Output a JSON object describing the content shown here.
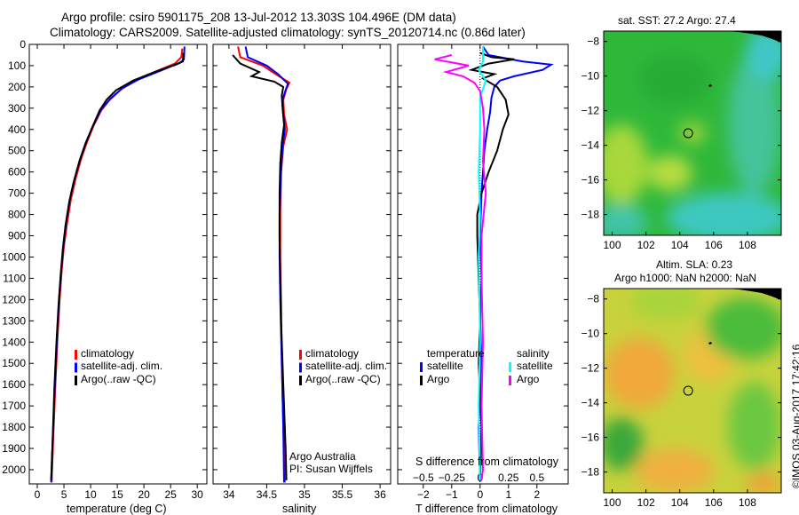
{
  "title": {
    "line1": "Argo profile: csiro 5901175_208 13-Jul-2012 13.303S 104.496E (DM data)",
    "line2": "Climatology: CARS2009. Satellite-adjusted climatology: synTS_20120714.nc (0.86d later)"
  },
  "credit": "©IMOS 03-Aug-2017 17:42:16",
  "colors": {
    "climatology": "#ff0000",
    "satellite": "#0000ff",
    "argo": "#000000",
    "s_satellite": "#00ffff",
    "s_argo": "#ff00ff"
  },
  "chart_data": [
    {
      "type": "line",
      "name": "temperature",
      "xlabel": "temperature (deg C)",
      "ylabel": "",
      "xlim": [
        -1.5,
        31.8
      ],
      "ylim": [
        2067,
        0
      ],
      "xticks": [
        0,
        5,
        10,
        15,
        20,
        25,
        30
      ],
      "yticks": [
        0,
        100,
        200,
        300,
        400,
        500,
        600,
        700,
        800,
        900,
        1000,
        1100,
        1200,
        1300,
        1400,
        1500,
        1600,
        1700,
        1800,
        1900,
        2000
      ],
      "legend": [
        "climatology",
        "satellite-adj. clim.",
        "Argo(..raw -QC)"
      ],
      "series": [
        {
          "name": "climatology",
          "color": "#ff0000",
          "points": [
            [
              27.2,
              20
            ],
            [
              27.0,
              60
            ],
            [
              25.8,
              90
            ],
            [
              22,
              130
            ],
            [
              18.5,
              170
            ],
            [
              15.8,
              210
            ],
            [
              13.6,
              260
            ],
            [
              12.0,
              310
            ],
            [
              10.6,
              380
            ],
            [
              9.3,
              460
            ],
            [
              8.2,
              540
            ],
            [
              7.2,
              630
            ],
            [
              6.3,
              730
            ],
            [
              5.6,
              840
            ],
            [
              5.0,
              950
            ],
            [
              4.6,
              1060
            ],
            [
              4.2,
              1200
            ],
            [
              3.8,
              1380
            ],
            [
              3.4,
              1600
            ],
            [
              3.0,
              1850
            ],
            [
              2.7,
              2060
            ]
          ]
        },
        {
          "name": "satellite-adj. clim.",
          "color": "#0000ff",
          "points": [
            [
              27.6,
              10
            ],
            [
              27.5,
              70
            ],
            [
              26.8,
              85
            ],
            [
              23,
              125
            ],
            [
              19,
              165
            ],
            [
              16,
              205
            ],
            [
              13.7,
              255
            ],
            [
              12.0,
              305
            ],
            [
              10.5,
              380
            ],
            [
              9.1,
              460
            ],
            [
              8.0,
              540
            ],
            [
              7.0,
              630
            ],
            [
              6.1,
              730
            ],
            [
              5.4,
              840
            ],
            [
              4.9,
              950
            ],
            [
              4.5,
              1060
            ],
            [
              4.1,
              1200
            ],
            [
              3.7,
              1380
            ],
            [
              3.3,
              1600
            ],
            [
              2.9,
              1850
            ],
            [
              2.6,
              2060
            ]
          ]
        },
        {
          "name": "Argo(..raw -QC)",
          "color": "#000000",
          "points": [
            [
              27.4,
              40
            ],
            [
              27.3,
              80
            ],
            [
              26,
              95
            ],
            [
              22.5,
              125
            ],
            [
              18,
              170
            ],
            [
              14.8,
              215
            ],
            [
              13,
              260
            ],
            [
              11.7,
              310
            ],
            [
              10.3,
              390
            ],
            [
              9.0,
              470
            ],
            [
              7.9,
              550
            ],
            [
              6.8,
              650
            ],
            [
              6.0,
              740
            ],
            [
              5.3,
              850
            ],
            [
              4.8,
              960
            ],
            [
              4.4,
              1080
            ],
            [
              4.0,
              1220
            ],
            [
              3.6,
              1400
            ],
            [
              3.2,
              1620
            ],
            [
              2.9,
              1850
            ],
            [
              2.6,
              2050
            ]
          ]
        }
      ]
    },
    {
      "type": "line",
      "name": "salinity",
      "xlabel": "salinity",
      "xlim": [
        33.79,
        36.14
      ],
      "ylim": [
        2067,
        0
      ],
      "xticks": [
        34,
        34.5,
        35,
        35.5,
        36
      ],
      "legend": [
        "climatology",
        "satellite-adj. clim.",
        "Argo(..raw -QC)"
      ],
      "annotation": [
        "Argo Australia",
        "PI: Susan Wijffels"
      ],
      "series": [
        {
          "name": "climatology",
          "color": "#ff0000",
          "points": [
            [
              34.12,
              10
            ],
            [
              34.15,
              60
            ],
            [
              34.45,
              100
            ],
            [
              34.62,
              140
            ],
            [
              34.8,
              180
            ],
            [
              34.76,
              210
            ],
            [
              34.72,
              260
            ],
            [
              34.73,
              330
            ],
            [
              34.77,
              400
            ],
            [
              34.72,
              480
            ],
            [
              34.69,
              600
            ],
            [
              34.68,
              800
            ],
            [
              34.68,
              1000
            ],
            [
              34.69,
              1200
            ],
            [
              34.7,
              1500
            ],
            [
              34.72,
              1800
            ],
            [
              34.74,
              2060
            ]
          ]
        },
        {
          "name": "satellite-adj. clim.",
          "color": "#0000ff",
          "points": [
            [
              34.22,
              10
            ],
            [
              34.25,
              60
            ],
            [
              34.5,
              100
            ],
            [
              34.65,
              140
            ],
            [
              34.78,
              185
            ],
            [
              34.75,
              215
            ],
            [
              34.71,
              260
            ],
            [
              34.72,
              330
            ],
            [
              34.74,
              400
            ],
            [
              34.71,
              480
            ],
            [
              34.69,
              600
            ],
            [
              34.67,
              800
            ],
            [
              34.67,
              1000
            ],
            [
              34.68,
              1200
            ],
            [
              34.7,
              1500
            ],
            [
              34.72,
              1800
            ],
            [
              34.73,
              2060
            ]
          ]
        },
        {
          "name": "Argo(..raw -QC)",
          "color": "#000000",
          "points": [
            [
              34.05,
              50
            ],
            [
              34.15,
              90
            ],
            [
              34.4,
              130
            ],
            [
              34.3,
              150
            ],
            [
              34.6,
              175
            ],
            [
              34.72,
              200
            ],
            [
              34.7,
              240
            ],
            [
              34.71,
              300
            ],
            [
              34.73,
              380
            ],
            [
              34.7,
              460
            ],
            [
              34.68,
              560
            ],
            [
              34.67,
              700
            ],
            [
              34.67,
              900
            ],
            [
              34.68,
              1100
            ],
            [
              34.69,
              1300
            ],
            [
              34.72,
              1600
            ],
            [
              34.75,
              1900
            ],
            [
              34.76,
              2050
            ]
          ]
        }
      ]
    },
    {
      "type": "line",
      "name": "difference",
      "xlabel": "T difference from climatology",
      "x2label": "S difference from climatology",
      "xlim": [
        -2.9,
        3.1
      ],
      "ylim": [
        2067,
        0
      ],
      "xticks": [
        -2,
        -1,
        0,
        1,
        2
      ],
      "x2ticks": [
        "-0.5",
        "-0.25",
        "0",
        "0.25",
        "0.5"
      ],
      "legend_groups": [
        {
          "title": "temperature",
          "items": [
            "satellite",
            "Argo"
          ]
        },
        {
          "title": "salinity",
          "items": [
            "satellite",
            "Argo"
          ]
        }
      ],
      "series": [
        {
          "name": "temperature satellite",
          "color": "#0000ff",
          "points": [
            [
              0.1,
              10
            ],
            [
              0.3,
              50
            ],
            [
              1.5,
              80
            ],
            [
              2.5,
              95
            ],
            [
              2.2,
              120
            ],
            [
              1.2,
              150
            ],
            [
              0.7,
              170
            ],
            [
              0.5,
              200
            ],
            [
              0.4,
              250
            ],
            [
              0.35,
              320
            ],
            [
              0.25,
              400
            ],
            [
              0.15,
              500
            ],
            [
              0.05,
              700
            ],
            [
              0.0,
              900
            ],
            [
              0.05,
              1100
            ],
            [
              0.0,
              1300
            ],
            [
              0.05,
              1500
            ],
            [
              -0.05,
              1800
            ],
            [
              0.0,
              2050
            ]
          ]
        },
        {
          "name": "temperature Argo",
          "color": "#000000",
          "points": [
            [
              0.0,
              40
            ],
            [
              0.4,
              60
            ],
            [
              1.2,
              70
            ],
            [
              0.3,
              90
            ],
            [
              -0.3,
              120
            ],
            [
              0.5,
              140
            ],
            [
              0.1,
              160
            ],
            [
              0.6,
              200
            ],
            [
              0.9,
              260
            ],
            [
              1.0,
              330
            ],
            [
              0.8,
              400
            ],
            [
              0.6,
              500
            ],
            [
              0.3,
              600
            ],
            [
              0.05,
              700
            ],
            [
              -0.1,
              800
            ],
            [
              -0.1,
              900
            ],
            [
              -0.05,
              1100
            ],
            [
              0.0,
              1300
            ],
            [
              -0.05,
              1500
            ],
            [
              0.05,
              1800
            ],
            [
              0.0,
              2050
            ]
          ]
        },
        {
          "name": "salinity satellite",
          "color": "#00ffff",
          "points": [
            [
              0.1,
              10
            ],
            [
              0.1,
              80
            ],
            [
              -0.05,
              120
            ],
            [
              0.2,
              170
            ],
            [
              0.0,
              250
            ],
            [
              0.0,
              400
            ],
            [
              -0.05,
              600
            ],
            [
              0.0,
              800
            ],
            [
              -0.05,
              1000
            ],
            [
              0.0,
              1400
            ],
            [
              -0.05,
              1700
            ],
            [
              0.0,
              2050
            ]
          ]
        },
        {
          "name": "salinity Argo",
          "color": "#ff00ff",
          "points": [
            [
              -1.0,
              50
            ],
            [
              -1.6,
              70
            ],
            [
              -0.4,
              100
            ],
            [
              -1.2,
              130
            ],
            [
              -0.6,
              150
            ],
            [
              -0.2,
              180
            ],
            [
              0.0,
              220
            ],
            [
              0.1,
              300
            ],
            [
              0.15,
              400
            ],
            [
              0.1,
              550
            ],
            [
              0.2,
              700
            ],
            [
              0.05,
              900
            ],
            [
              0.05,
              1100
            ],
            [
              0.1,
              1400
            ],
            [
              0.05,
              1700
            ],
            [
              0.1,
              2000
            ],
            [
              0.05,
              2050
            ]
          ]
        }
      ]
    },
    {
      "type": "heatmap",
      "name": "sst-map",
      "title": "sat. SST: 27.2 Argo: 27.4",
      "xlim": [
        99.5,
        110
      ],
      "ylim": [
        -19.2,
        -7.4
      ],
      "xticks": [
        100,
        102,
        104,
        106,
        108
      ],
      "yticks": [
        -8,
        -10,
        -12,
        -14,
        -16,
        -18
      ],
      "argo_position": [
        104.496,
        -13.303
      ]
    },
    {
      "type": "heatmap",
      "name": "sla-map",
      "title": "Altim. SLA: 0.23",
      "subtitle": "Argo h1000: NaN h2000: NaN",
      "xlim": [
        99.5,
        110
      ],
      "ylim": [
        -19.2,
        -7.4
      ],
      "xticks": [
        100,
        102,
        104,
        106,
        108
      ],
      "yticks": [
        -8,
        -10,
        -12,
        -14,
        -16,
        -18
      ],
      "argo_position": [
        104.496,
        -13.303
      ]
    }
  ]
}
